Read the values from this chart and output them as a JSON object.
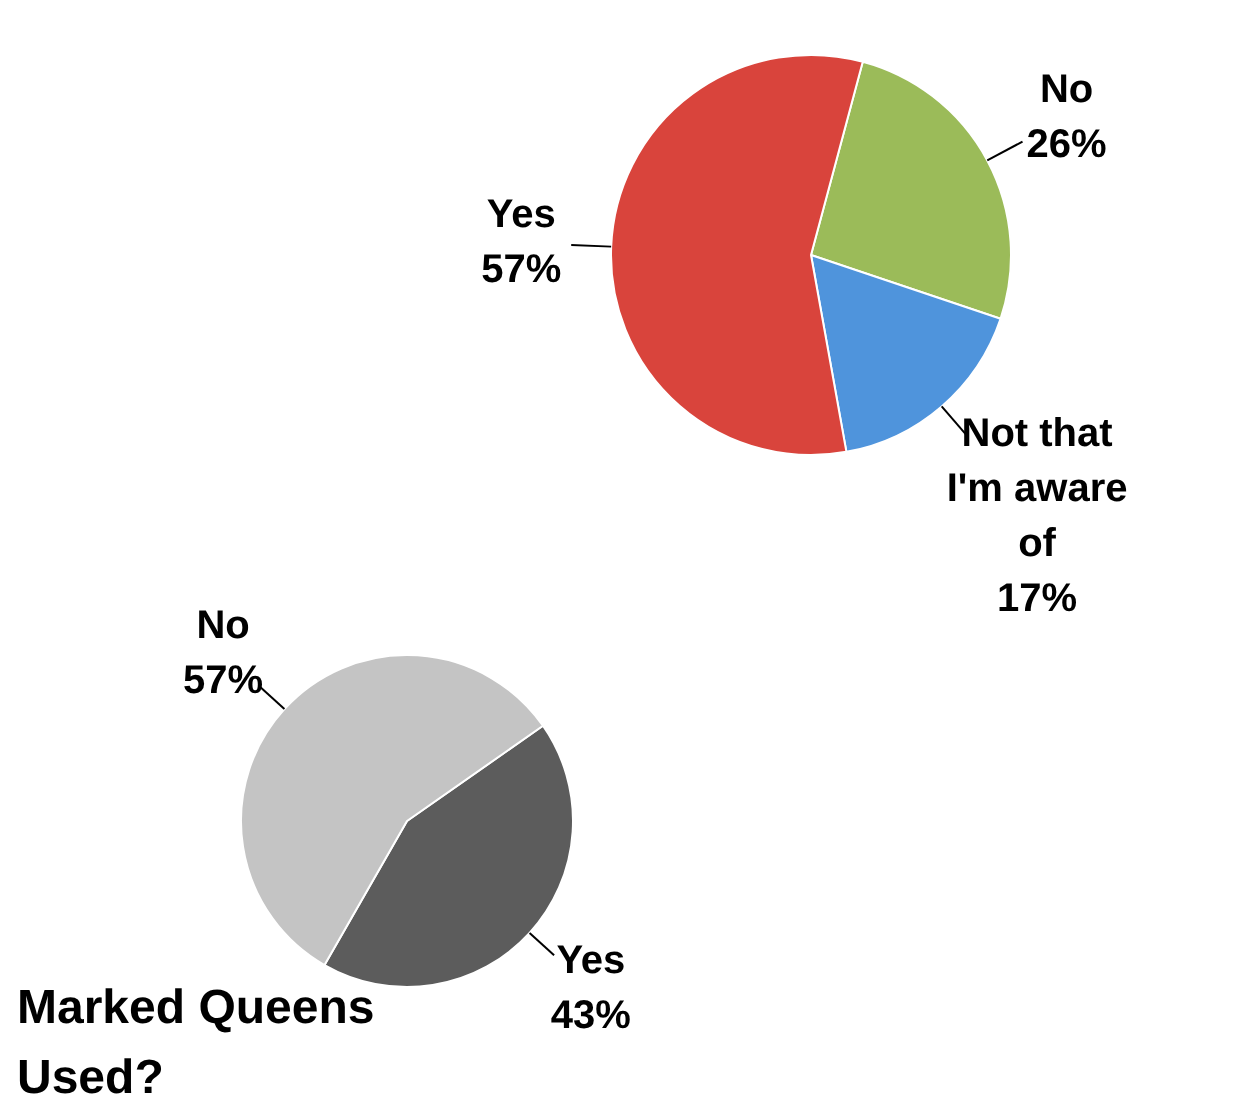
{
  "chart_data": [
    {
      "type": "pie",
      "categories": [
        "No",
        "Not that I'm aware of",
        "Yes"
      ],
      "values": [
        26,
        17,
        57
      ],
      "colors": [
        "#9bbb59",
        "#4f94dc",
        "#d9443c"
      ],
      "data_labels": true,
      "value_labels": [
        "26%",
        "17%",
        "57%"
      ]
    },
    {
      "type": "pie",
      "title": "Marked Queens Used?",
      "categories": [
        "Yes",
        "No"
      ],
      "values": [
        43,
        57
      ],
      "colors": [
        "#5c5c5c",
        "#c4c4c4"
      ],
      "data_labels": true,
      "value_labels": [
        "43%",
        "57%"
      ]
    }
  ]
}
